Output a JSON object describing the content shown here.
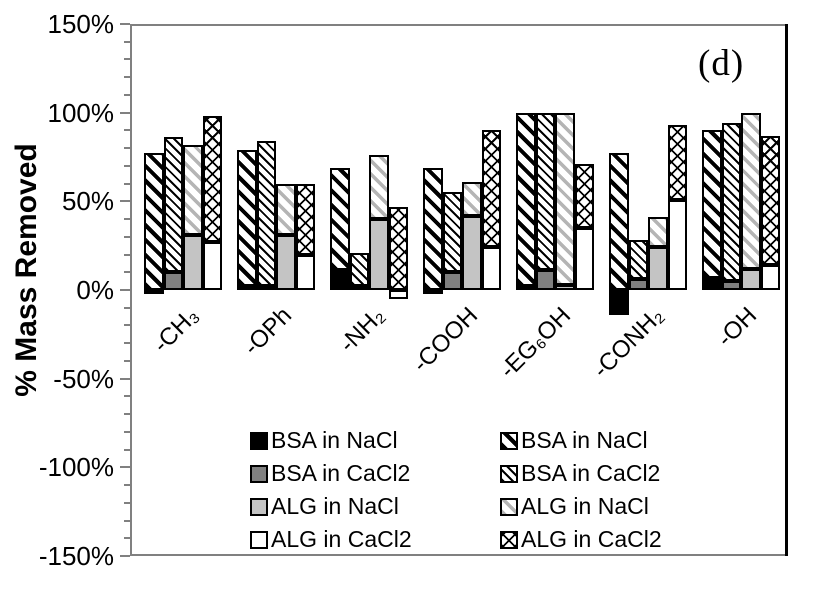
{
  "panel_label": "(d)",
  "colors": {
    "solid_black": "#000000",
    "solid_dark_gray": "#808080",
    "solid_light_gray": "#c4c4c4",
    "solid_white": "#ffffff",
    "axis_gray": "#808080",
    "hatch_gray": "#b5b5b5",
    "border_black": "#000000"
  },
  "chart_data": {
    "type": "bar",
    "title": "",
    "xlabel": "",
    "ylabel": "% Mass Removed",
    "ylim": [
      -150,
      150
    ],
    "ytick_step_major": 50,
    "ytick_step_minor": 10,
    "ytick_labels": [
      "150%",
      "100%",
      "50%",
      "0%",
      "-50%",
      "-100%",
      "-150%"
    ],
    "grid": false,
    "legend_position": "bottom-inside",
    "annotation": "(d)",
    "categories": [
      "-CH₃",
      "-OPh",
      "-NH₂",
      "-COOH",
      "-EG₆OH",
      "-CONH₂",
      "-OH"
    ],
    "bar_structure": "each bar = solid base segment stacked with patterned top segment; values in % mass removed",
    "bar_pairs": [
      {
        "solid_name": "BSA in NaCl",
        "pattern_name": "BSA in NaCl",
        "solid_style": "black",
        "pattern_style": "diag-bold",
        "solid_values": [
          -2,
          2,
          11,
          -2,
          2,
          -14,
          7
        ],
        "stack_top_values": [
          77,
          79,
          69,
          69,
          100,
          77,
          90
        ]
      },
      {
        "solid_name": "BSA in CaCl2",
        "pattern_name": "BSA in CaCl2",
        "solid_style": "darkgray",
        "pattern_style": "diag-fine",
        "solid_values": [
          10,
          2,
          2,
          10,
          11,
          6,
          5
        ],
        "stack_top_values": [
          86,
          84,
          21,
          55,
          100,
          28,
          94
        ]
      },
      {
        "solid_name": "ALG in NaCl",
        "pattern_name": "ALG in NaCl",
        "solid_style": "lightgray",
        "pattern_style": "diag-gray",
        "solid_values": [
          31,
          31,
          40,
          42,
          3,
          24,
          12
        ],
        "stack_top_values": [
          82,
          60,
          76,
          61,
          100,
          41,
          100
        ]
      },
      {
        "solid_name": "ALG in CaCl2",
        "pattern_name": "ALG in CaCl2",
        "solid_style": "white",
        "pattern_style": "cross",
        "solid_values": [
          27,
          20,
          -5,
          24,
          35,
          51,
          14
        ],
        "stack_top_values": [
          98,
          60,
          47,
          90,
          71,
          93,
          87
        ]
      }
    ],
    "legend": {
      "solid_column": [
        {
          "label": "BSA in NaCl",
          "style": "black"
        },
        {
          "label": "BSA in CaCl2",
          "style": "darkgray"
        },
        {
          "label": "ALG in NaCl",
          "style": "lightgray"
        },
        {
          "label": "ALG in CaCl2",
          "style": "white"
        }
      ],
      "pattern_column": [
        {
          "label": "BSA in NaCl",
          "style": "diag-bold"
        },
        {
          "label": "BSA in CaCl2",
          "style": "diag-fine"
        },
        {
          "label": "ALG in NaCl",
          "style": "diag-gray"
        },
        {
          "label": "ALG in CaCl2",
          "style": "cross"
        }
      ]
    }
  }
}
